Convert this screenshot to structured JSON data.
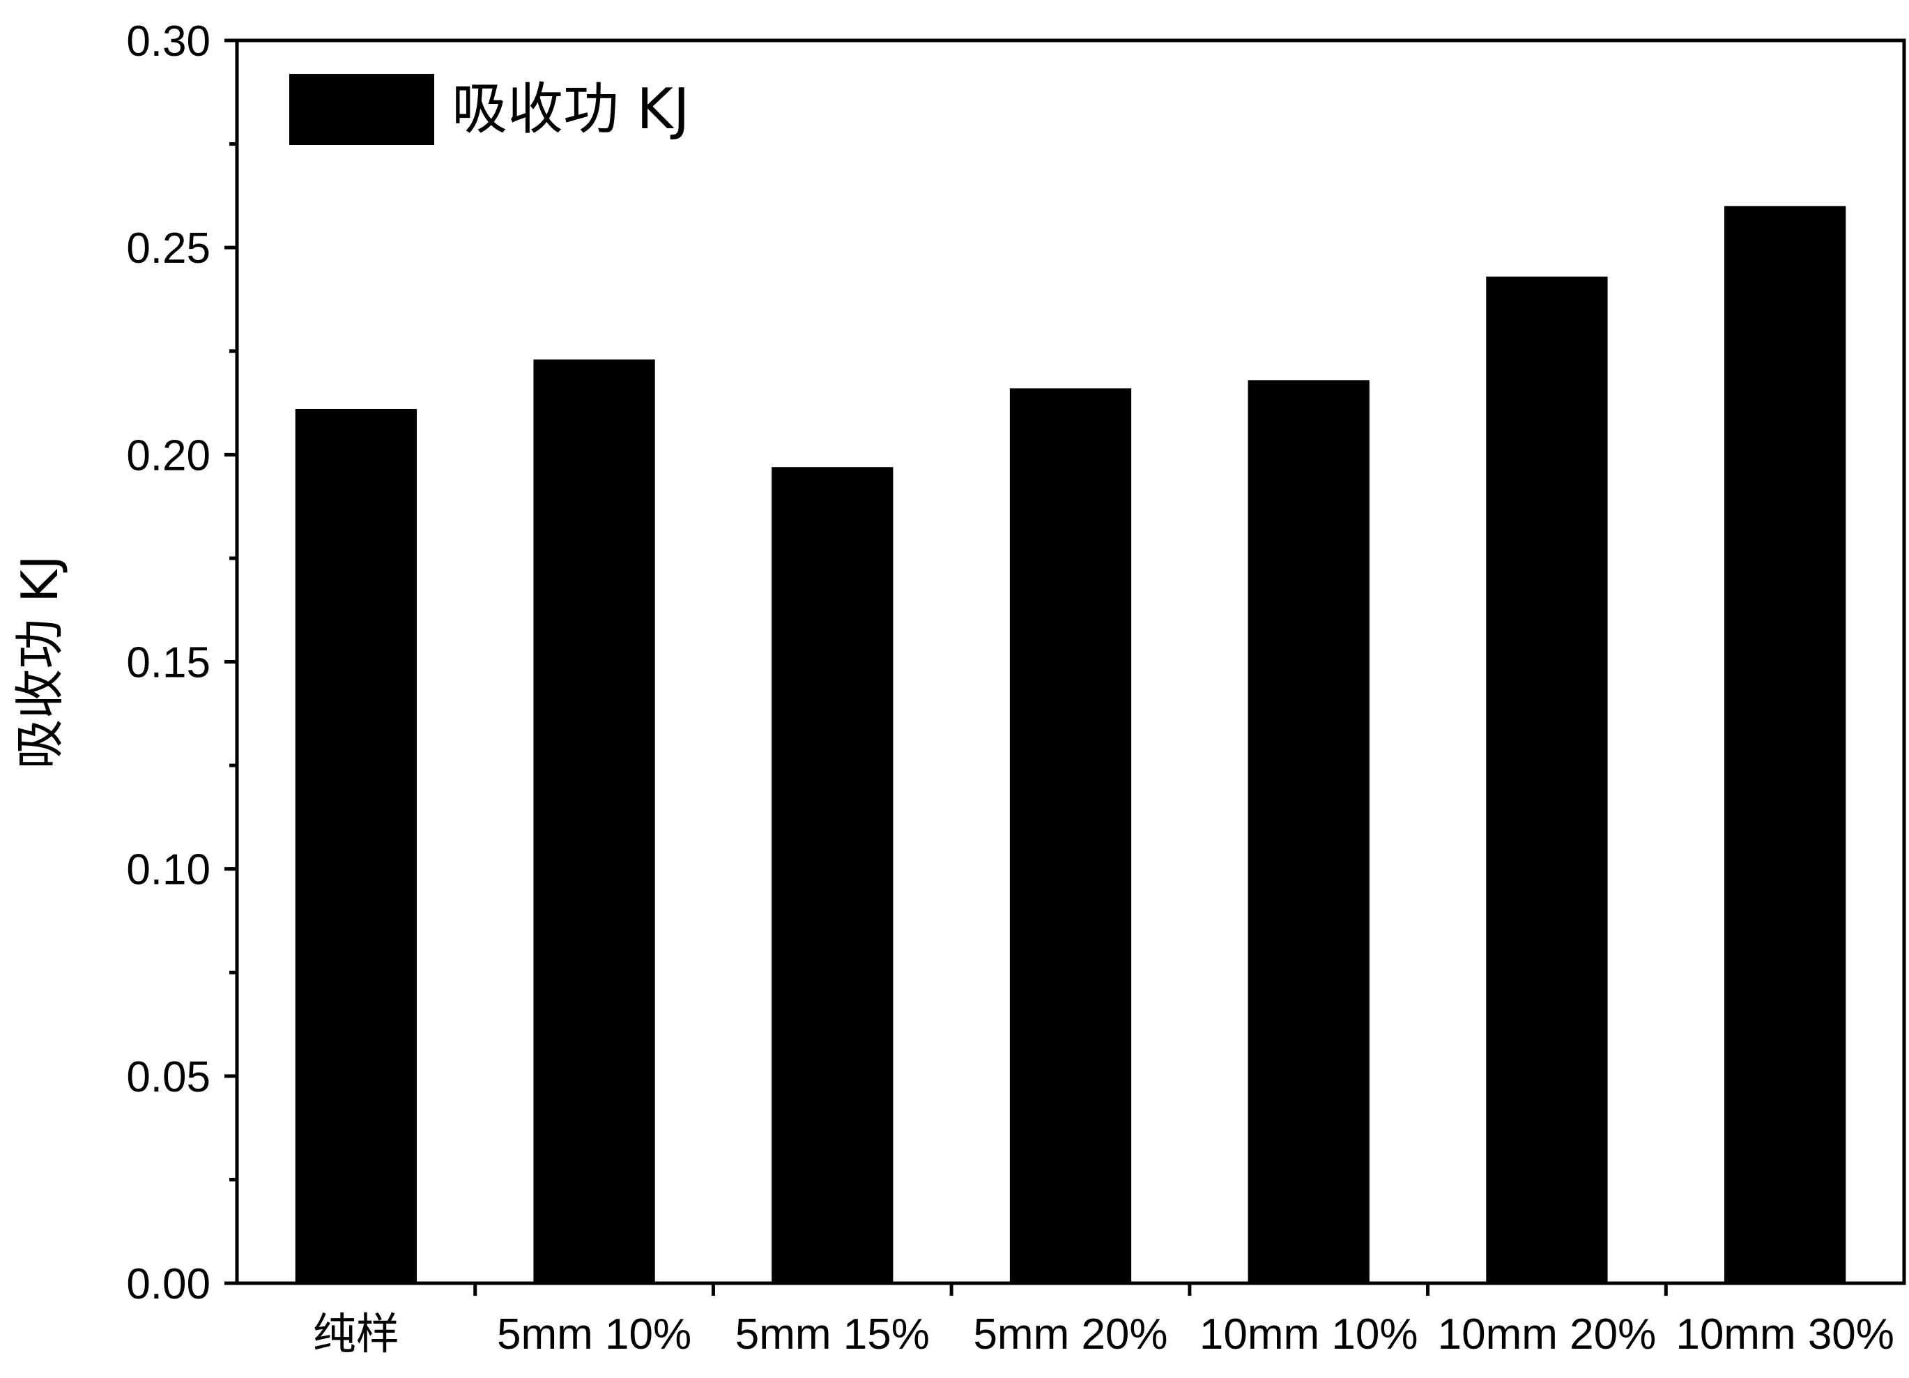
{
  "chart_data": {
    "type": "bar",
    "categories": [
      "纯样",
      "5mm 10%",
      "5mm 15%",
      "5mm 20%",
      "10mm 10%",
      "10mm 20%",
      "10mm 30%"
    ],
    "series": [
      {
        "name": "吸收功 KJ",
        "values": [
          0.211,
          0.223,
          0.197,
          0.216,
          0.218,
          0.243,
          0.26
        ],
        "color": "#000000"
      }
    ],
    "ylabel": "吸收功 KJ",
    "xlabel": "",
    "ylim": [
      0,
      0.3
    ],
    "yticks": [
      "0.00",
      "0.05",
      "0.10",
      "0.15",
      "0.20",
      "0.25",
      "0.30"
    ],
    "legend": {
      "position": "top-left",
      "label": "吸收功 KJ"
    },
    "grid": false
  }
}
